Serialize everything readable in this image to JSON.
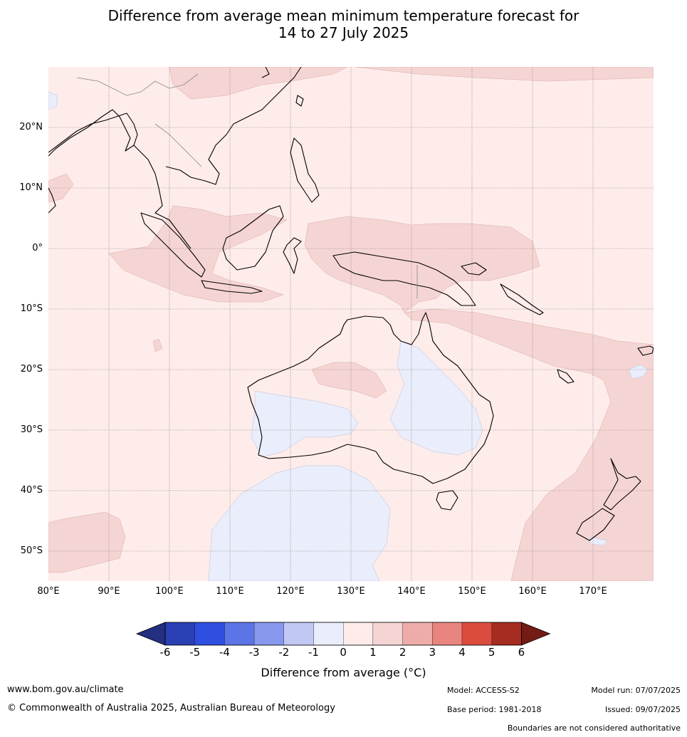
{
  "title": {
    "line1": "Difference from average mean minimum temperature forecast for",
    "line2": "14 to 27 July 2025"
  },
  "map": {
    "lat_labels": [
      "20°N",
      "10°N",
      "0°",
      "10°S",
      "20°S",
      "30°S",
      "40°S",
      "50°S"
    ],
    "lon_labels": [
      "80°E",
      "90°E",
      "100°E",
      "110°E",
      "120°E",
      "130°E",
      "140°E",
      "150°E",
      "160°E",
      "170°E"
    ],
    "extent": {
      "lon_min": 80,
      "lon_max": 180,
      "lat_min": -55,
      "lat_max": 30
    }
  },
  "colorbar": {
    "ticks": [
      "-6",
      "-5",
      "-4",
      "-3",
      "-2",
      "-1",
      "0",
      "1",
      "2",
      "3",
      "4",
      "5",
      "6"
    ],
    "label": "Difference from average (°C)",
    "colors": [
      "#23307f",
      "#2a3fb4",
      "#2e4fe0",
      "#5b74e6",
      "#8898ee",
      "#c1c8f4",
      "#eaedfb",
      "#fdecea",
      "#f5d5d4",
      "#eeaca8",
      "#e8857e",
      "#dc4c3e",
      "#a62b20",
      "#741b15"
    ]
  },
  "footer": {
    "website": "www.bom.gov.au/climate",
    "copyright": "© Commonwealth of Australia 2025, Australian Bureau of Meteorology",
    "model": "Model: ACCESS-S2",
    "base_period": "Base period: 1981-2018",
    "model_run": "Model run: 07/07/2025",
    "issued": "Issued: 09/07/2025",
    "disclaimer": "Boundaries are not considered authoritative"
  }
}
